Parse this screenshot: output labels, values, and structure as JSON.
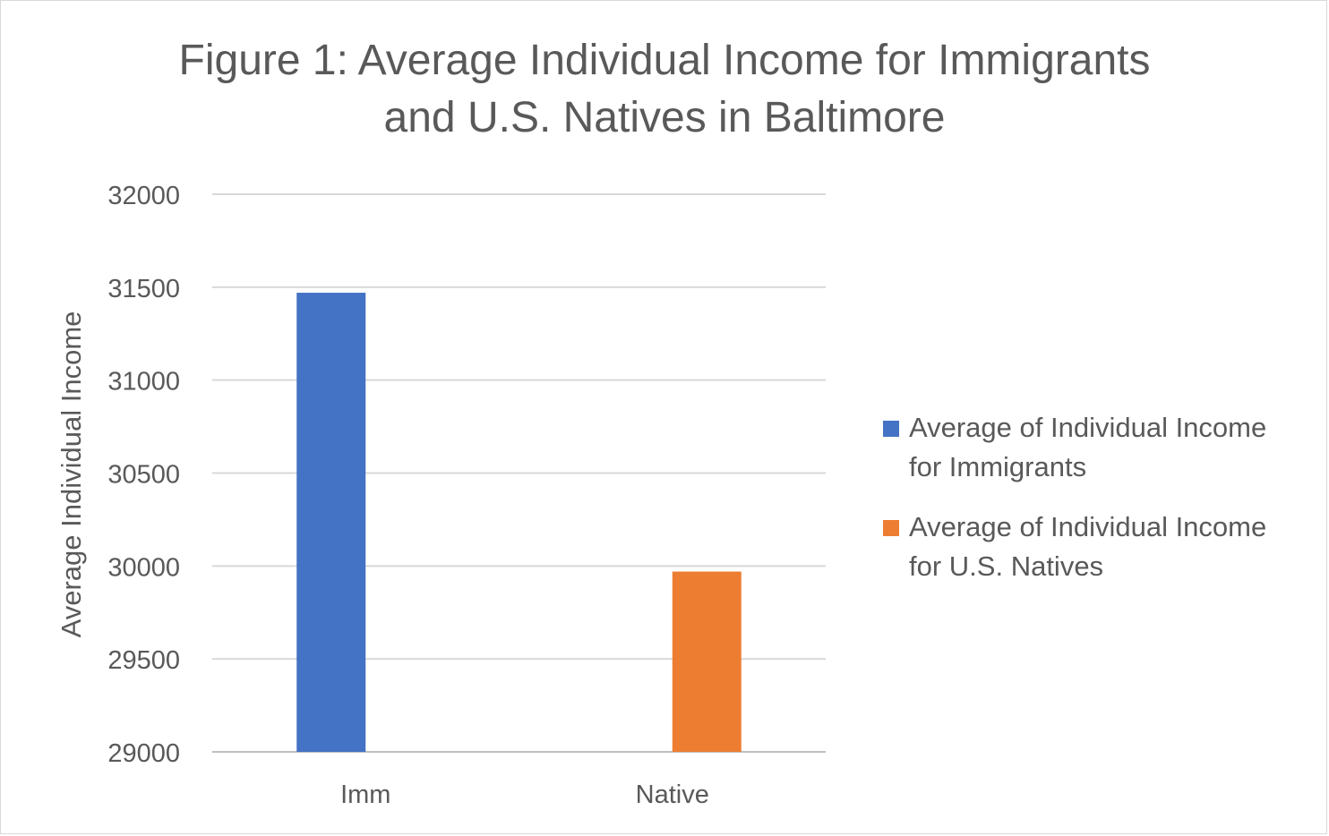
{
  "chart_data": {
    "type": "bar",
    "title": "Figure 1: Average Individual Income for Immigrants and U.S. Natives in Baltimore",
    "title_lines": [
      "Figure 1: Average Individual Income for Immigrants",
      "and U.S. Natives in Baltimore"
    ],
    "xlabel": "",
    "ylabel": "Average Individual Income",
    "categories": [
      "Imm",
      "Native"
    ],
    "series": [
      {
        "name": "Average of Individual Income for Immigrants",
        "color": "#4472c4",
        "values": [
          31470,
          null
        ]
      },
      {
        "name": "Average of Individual Income for U.S. Natives",
        "color": "#ed7d31",
        "values": [
          null,
          29970
        ]
      }
    ],
    "ylim": [
      29000,
      32000
    ],
    "yticks": [
      29000,
      29500,
      30000,
      30500,
      31000,
      31500,
      32000
    ],
    "grid": true,
    "legend_position": "right"
  }
}
